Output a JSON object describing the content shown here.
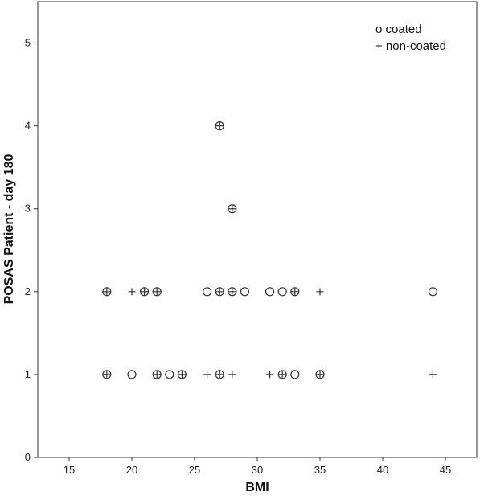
{
  "chart_data": {
    "type": "scatter",
    "xlabel": "BMI",
    "ylabel": "POSAS Patient - day 180",
    "xlim": [
      12.5,
      47.5
    ],
    "ylim": [
      0,
      5.5
    ],
    "xticks": [
      "15",
      "20",
      "25",
      "30",
      "35",
      "40",
      "45"
    ],
    "yticks": [
      "0",
      "1",
      "2",
      "3",
      "4",
      "5"
    ],
    "grid": false,
    "legend_position": "top-right",
    "legend": [
      "o coated",
      "+ non-coated"
    ],
    "series": [
      {
        "name": "o coated",
        "marker": "circle",
        "x": [
          18,
          20,
          22,
          23,
          24,
          27,
          32,
          33,
          35,
          18,
          21,
          22,
          26,
          27,
          28,
          29,
          31,
          32,
          33,
          44,
          28,
          27
        ],
        "y": [
          1,
          1,
          1,
          1,
          1,
          1,
          1,
          1,
          1,
          2,
          2,
          2,
          2,
          2,
          2,
          2,
          2,
          2,
          2,
          2,
          3,
          4
        ]
      },
      {
        "name": "+ non-coated",
        "marker": "plus",
        "x": [
          18,
          22,
          24,
          26,
          27,
          28,
          31,
          32,
          35,
          44,
          18,
          20,
          21,
          22,
          27,
          28,
          33,
          35,
          28,
          27
        ],
        "y": [
          1,
          1,
          1,
          1,
          1,
          1,
          1,
          1,
          1,
          1,
          2,
          2,
          2,
          2,
          2,
          2,
          2,
          2,
          3,
          4
        ]
      }
    ]
  },
  "colors": {
    "marker_stroke": "#333333",
    "axis": "#333333"
  }
}
